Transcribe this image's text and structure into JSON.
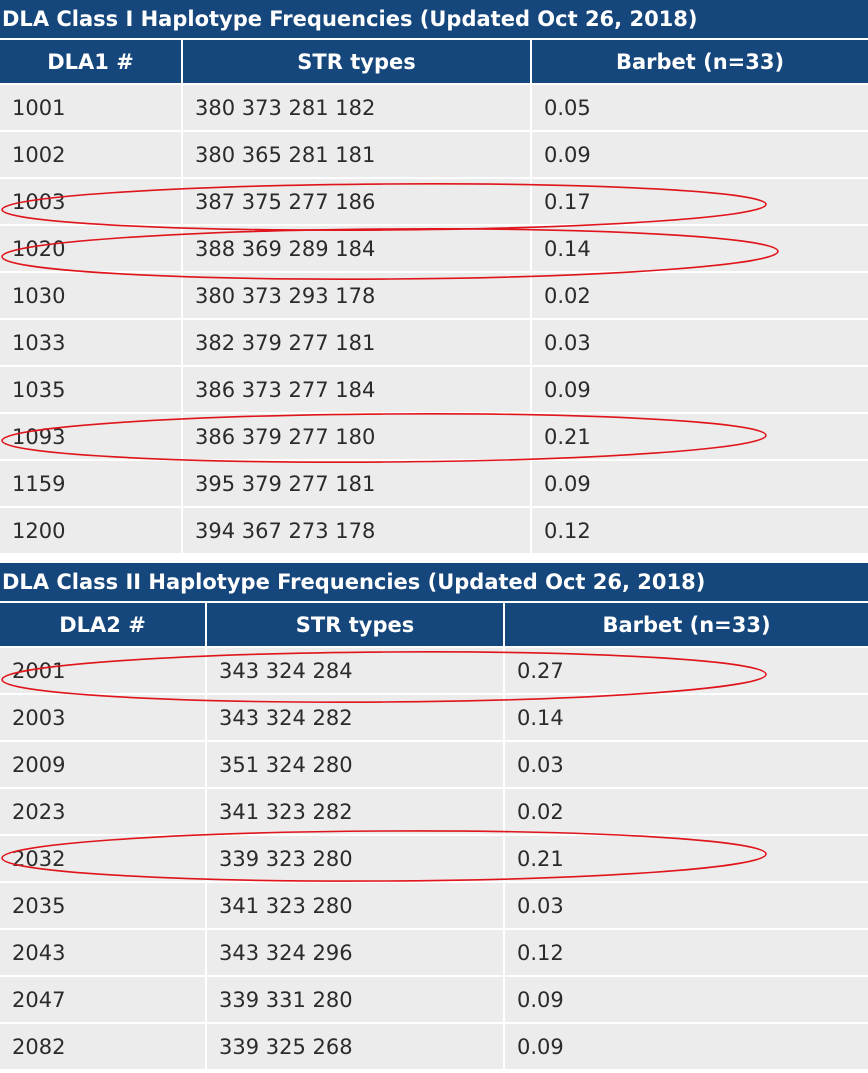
{
  "class1": {
    "title": "DLA Class I Haplotype Frequencies (Updated Oct 26, 2018)",
    "headers": [
      "DLA1 #",
      "STR types",
      "Barbet (n=33)"
    ],
    "rows": [
      [
        "1001",
        "380 373 281 182",
        "0.05"
      ],
      [
        "1002",
        "380 365 281 181",
        "0.09"
      ],
      [
        "1003",
        "387 375 277 186",
        "0.17"
      ],
      [
        "1020",
        "388 369 289 184",
        "0.14"
      ],
      [
        "1030",
        "380 373 293 178",
        "0.02"
      ],
      [
        "1033",
        "382 379 277 181",
        "0.03"
      ],
      [
        "1035",
        "386 373 277 184",
        "0.09"
      ],
      [
        "1093",
        "386 379 277 180",
        "0.21"
      ],
      [
        "1159",
        "395 379 277 181",
        "0.09"
      ],
      [
        "1200",
        "394 367 273 178",
        "0.12"
      ]
    ]
  },
  "class2": {
    "title": "DLA Class II Haplotype Frequencies (Updated Oct 26, 2018)",
    "headers": [
      "DLA2 #",
      "STR types",
      "Barbet (n=33)"
    ],
    "rows": [
      [
        "2001",
        "343 324 284",
        "0.27"
      ],
      [
        "2003",
        "343 324 282",
        "0.14"
      ],
      [
        "2009",
        "351 324 280",
        "0.03"
      ],
      [
        "2023",
        "341 323 282",
        "0.02"
      ],
      [
        "2032",
        "339 323 280",
        "0.21"
      ],
      [
        "2035",
        "341 323 280",
        "0.03"
      ],
      [
        "2043",
        "343 324 296",
        "0.12"
      ],
      [
        "2047",
        "339 331 280",
        "0.09"
      ],
      [
        "2082",
        "339 325 268",
        "0.09"
      ]
    ]
  },
  "highlight_color": "#e0141b",
  "header_color": "#15467c",
  "row_color": "#ececec"
}
